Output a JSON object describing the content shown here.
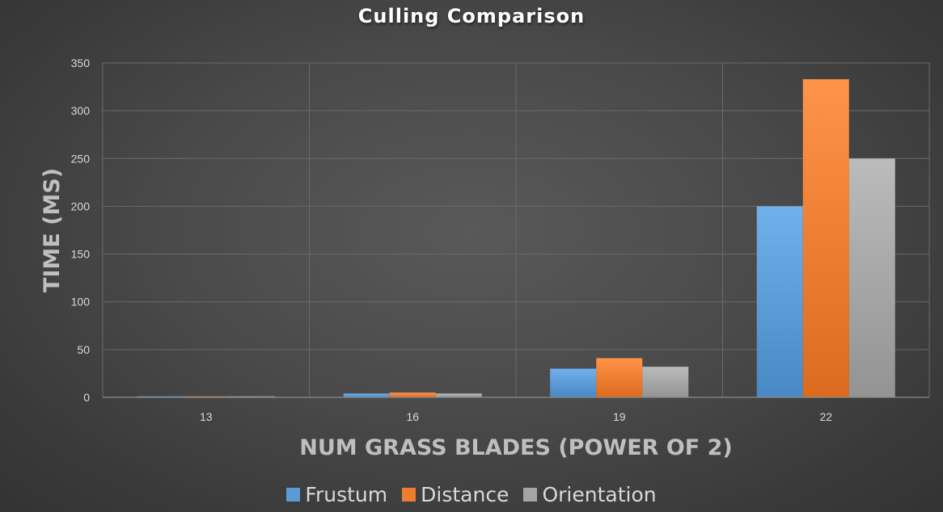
{
  "chart_data": {
    "type": "bar",
    "title": "Culling Comparison",
    "xlabel": "NUM GRASS BLADES (POWER OF 2)",
    "ylabel": "TIME (MS)",
    "categories": [
      "13",
      "16",
      "19",
      "22"
    ],
    "series": [
      {
        "name": "Frustum",
        "values": [
          1,
          4,
          30,
          200
        ],
        "color": "#5b9bd5"
      },
      {
        "name": "Distance",
        "values": [
          1,
          5,
          41,
          333
        ],
        "color": "#ed7d31"
      },
      {
        "name": "Orientation",
        "values": [
          1,
          4,
          32,
          250
        ],
        "color": "#a5a5a5"
      }
    ],
    "ylim": [
      0,
      350
    ],
    "yticks": [
      0,
      50,
      100,
      150,
      200,
      250,
      300,
      350
    ],
    "grid": true,
    "legend_position": "bottom"
  }
}
